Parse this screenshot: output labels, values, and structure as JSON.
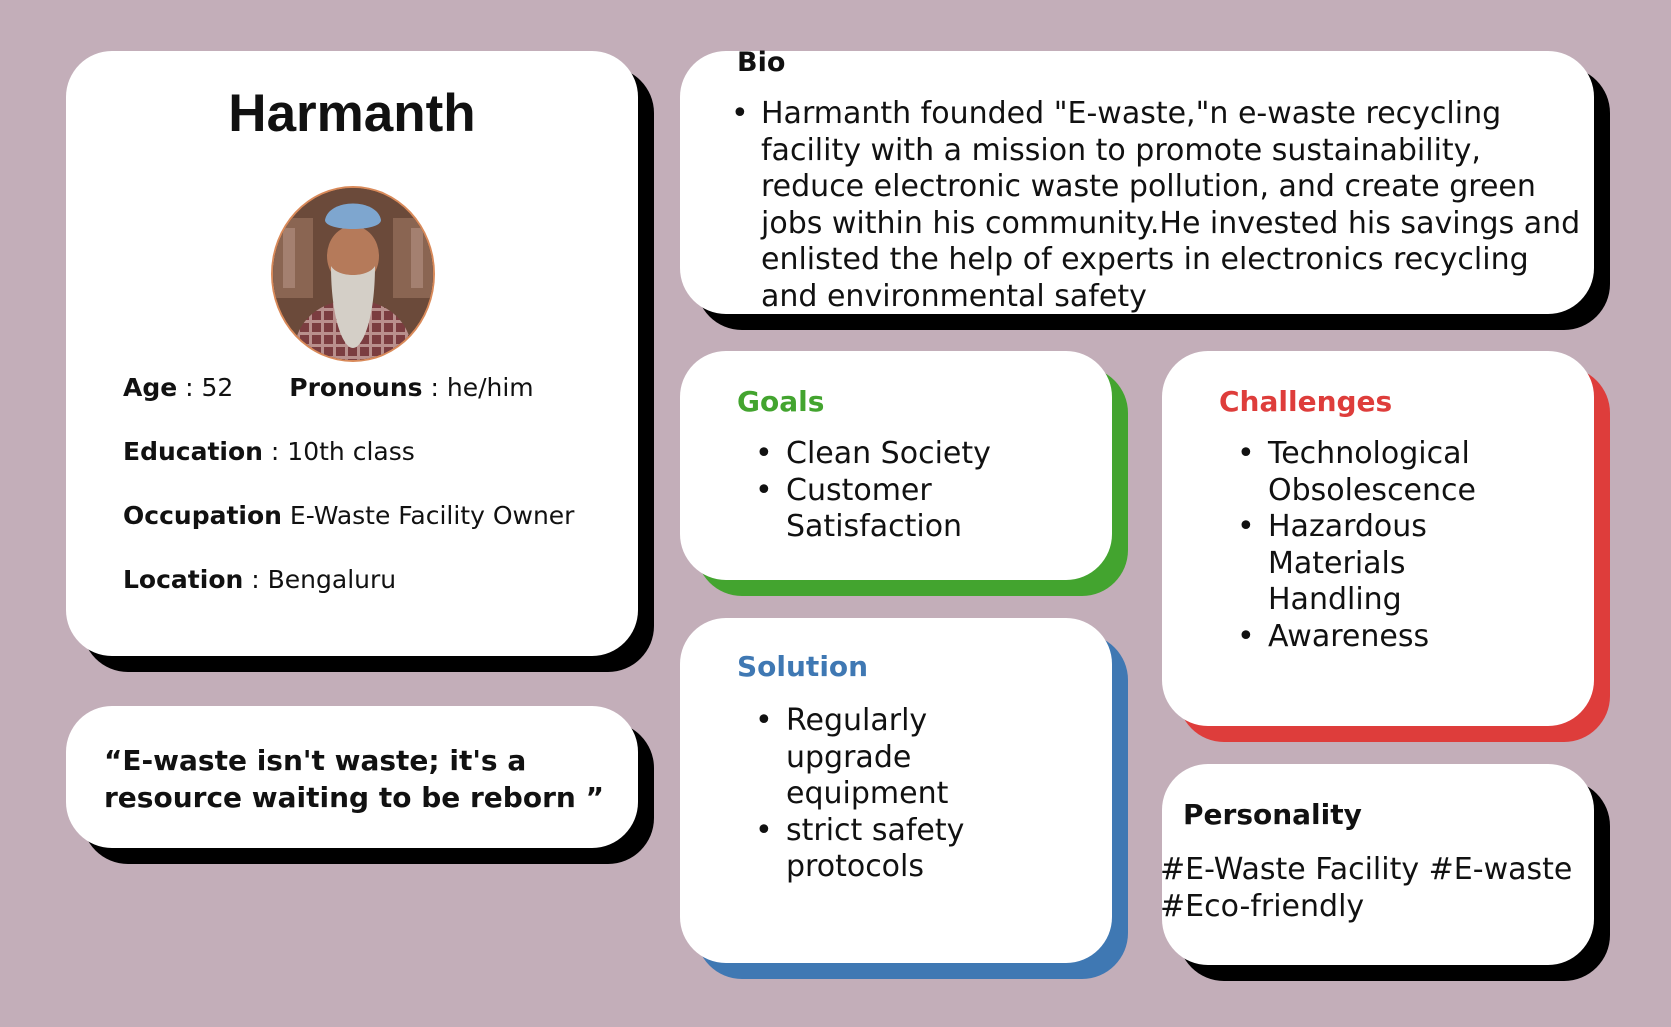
{
  "profile": {
    "name": "Harmanth",
    "photo_alt": "Harmanth photo",
    "age_label": "Age",
    "age_sep": " : ",
    "age_value": "52",
    "pronouns_label": "Pronouns",
    "pronouns_sep": " : ",
    "pronouns_value": "he/him",
    "education_label": "Education",
    "education_sep": " : ",
    "education_value": "10th class",
    "occupation_label": "Occupation",
    "occupation_value": "E-Waste Facility Owner",
    "location_label": "Location",
    "location_sep": " : ",
    "location_value": "Bengaluru"
  },
  "quote": {
    "line1": "“E-waste isn't waste; it's a",
    "line2": "resource waiting to be reborn ”"
  },
  "bio": {
    "title": "Bio",
    "bullet": "•",
    "lines": [
      "Harmanth founded \"E-waste,\"n e-waste recycling",
      "facility with a mission to promote sustainability,",
      "reduce electronic waste pollution, and create green",
      "jobs within his community.He invested his savings and",
      "enlisted the help of experts in electronics recycling",
      "and environmental safety"
    ]
  },
  "goals": {
    "title": "Goals",
    "title_color": "#43a42f",
    "items": [
      {
        "lines": [
          "Clean Society"
        ]
      },
      {
        "lines": [
          "Customer",
          "Satisfaction"
        ]
      }
    ]
  },
  "challenges": {
    "title": "Challenges",
    "title_color": "#de3d3b",
    "items": [
      {
        "lines": [
          "Technological",
          "Obsolescence"
        ]
      },
      {
        "lines": [
          "Hazardous",
          "Materials",
          "Handling"
        ]
      },
      {
        "lines": [
          "Awareness"
        ]
      }
    ]
  },
  "solution": {
    "title": "Solution",
    "title_color": "#3f78b3",
    "items": [
      {
        "lines": [
          "Regularly",
          "upgrade",
          "equipment"
        ]
      },
      {
        "lines": [
          "strict safety",
          "protocols"
        ]
      }
    ]
  },
  "personality": {
    "title": "Personality",
    "line1": "#E-Waste Facility #E-waste",
    "line2": "#Eco-friendly"
  },
  "colors": {
    "background": "#c3aeb9",
    "card": "#ffffff",
    "shadow_black": "#000000",
    "green": "#43a42f",
    "red": "#de3d3b",
    "blue": "#3f78b3"
  }
}
